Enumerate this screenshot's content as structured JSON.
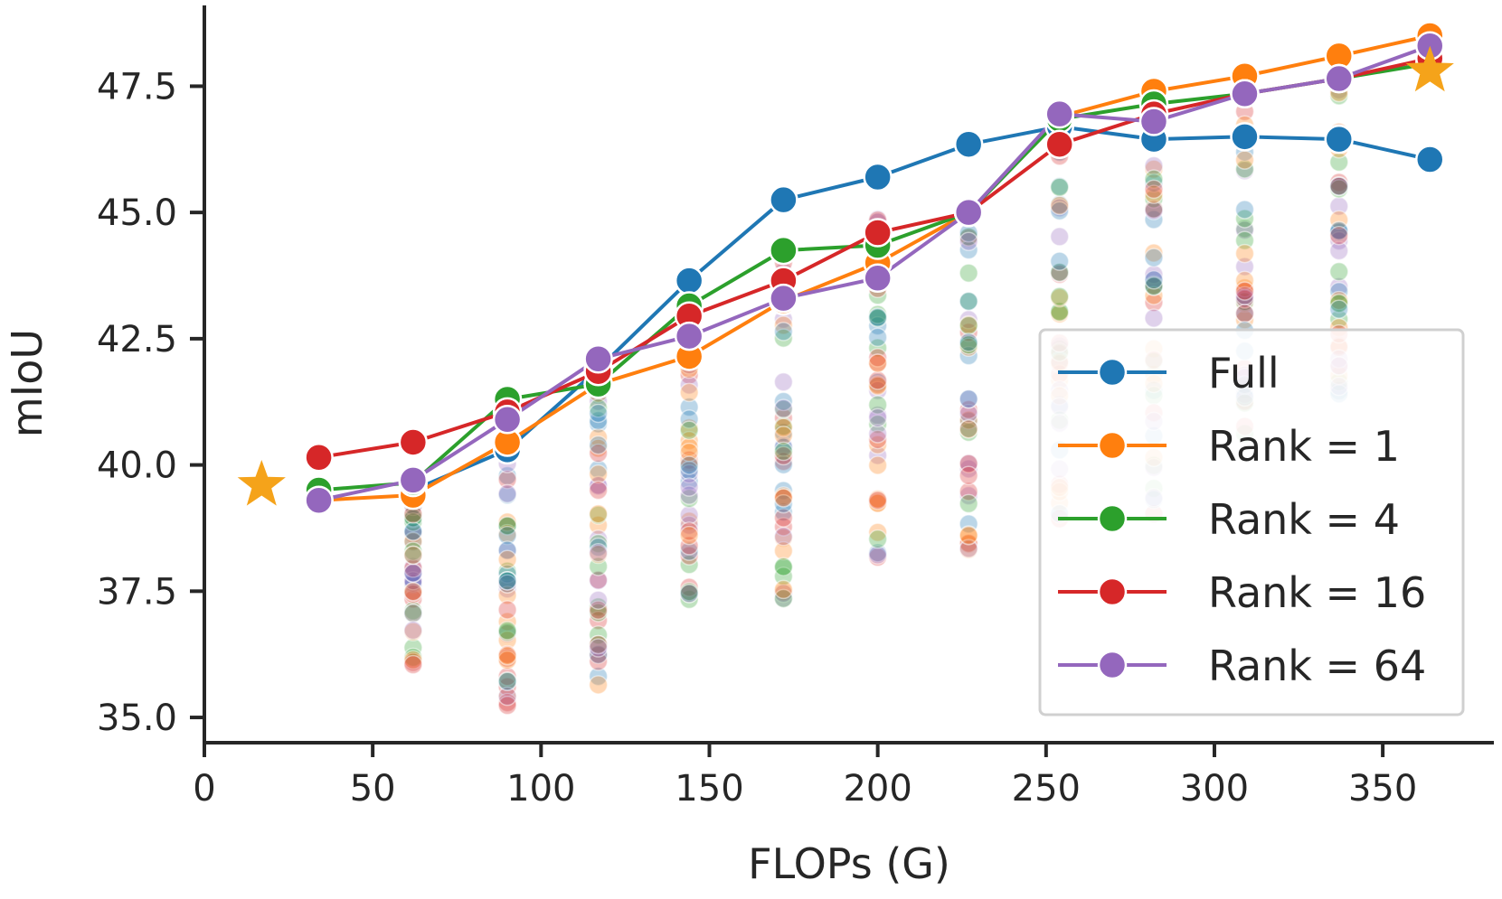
{
  "chart_data": {
    "type": "line",
    "title": "",
    "xlabel": "FLOPs (G)",
    "ylabel": "mIoU",
    "xlim": [
      0,
      383
    ],
    "ylim": [
      34.5,
      49.1
    ],
    "xticks": [
      0,
      50,
      100,
      150,
      200,
      250,
      300,
      350
    ],
    "yticks": [
      35.0,
      37.5,
      40.0,
      42.5,
      45.0,
      47.5
    ],
    "ytick_labels": [
      "35.0",
      "37.5",
      "40.0",
      "42.5",
      "45.0",
      "47.5"
    ],
    "grid": false,
    "legend_position": "lower-right",
    "x": [
      34,
      62,
      90,
      117,
      144,
      172,
      200,
      227,
      254,
      282,
      309,
      337,
      364
    ],
    "series": [
      {
        "name": "Full",
        "color": "#1f77b4",
        "values": [
          null,
          39.5,
          40.3,
          41.9,
          43.65,
          45.25,
          45.7,
          46.35,
          46.7,
          46.45,
          46.5,
          46.45,
          46.05
        ]
      },
      {
        "name": "Rank = 1",
        "color": "#ff7f0e",
        "values": [
          39.3,
          39.4,
          40.45,
          41.6,
          42.15,
          43.25,
          44.0,
          45.0,
          46.9,
          47.4,
          47.7,
          48.1,
          48.5
        ]
      },
      {
        "name": "Rank = 4",
        "color": "#2ca02c",
        "values": [
          39.5,
          39.65,
          41.3,
          41.6,
          43.15,
          44.25,
          44.35,
          45.0,
          46.85,
          47.15,
          47.35,
          47.65,
          47.95
        ]
      },
      {
        "name": "Rank = 16",
        "color": "#d62728",
        "values": [
          40.15,
          40.45,
          41.05,
          41.85,
          42.95,
          43.65,
          44.6,
          45.0,
          46.35,
          46.95,
          47.35,
          47.65,
          48.05
        ]
      },
      {
        "name": "Rank = 64",
        "color": "#9467bd",
        "values": [
          39.3,
          39.7,
          40.9,
          42.1,
          42.55,
          43.3,
          43.7,
          45.0,
          46.95,
          46.8,
          47.35,
          47.65,
          48.3
        ]
      }
    ],
    "stars": [
      {
        "x": 17,
        "y": 39.6,
        "color": "#f5a31a"
      },
      {
        "x": 364,
        "y": 47.8,
        "color": "#f5a31a"
      }
    ],
    "scatter_clouds": [
      {
        "x": 62,
        "min": 36.0,
        "max": 39.9
      },
      {
        "x": 90,
        "min": 35.1,
        "max": 40.5
      },
      {
        "x": 117,
        "min": 35.6,
        "max": 41.7
      },
      {
        "x": 144,
        "min": 37.0,
        "max": 43.0
      },
      {
        "x": 172,
        "min": 37.3,
        "max": 44.5
      },
      {
        "x": 200,
        "min": 37.6,
        "max": 45.3
      },
      {
        "x": 227,
        "min": 38.1,
        "max": 46.1
      },
      {
        "x": 254,
        "min": 38.8,
        "max": 46.2
      },
      {
        "x": 282,
        "min": 39.0,
        "max": 46.7
      },
      {
        "x": 309,
        "min": 40.0,
        "max": 47.0
      },
      {
        "x": 337,
        "min": 41.3,
        "max": 47.5
      }
    ]
  }
}
